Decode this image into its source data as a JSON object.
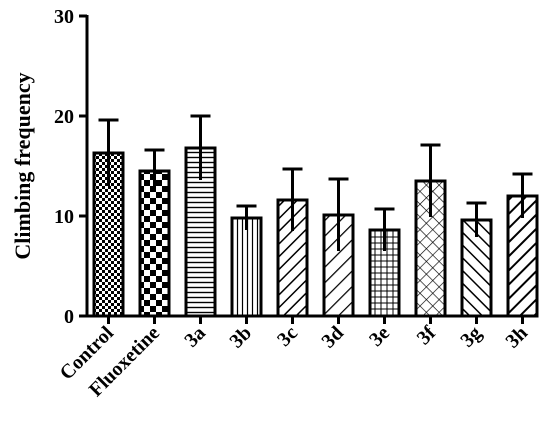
{
  "chart_data": {
    "type": "bar",
    "title": "",
    "xlabel": "",
    "ylabel": "Climbing frequency",
    "ylim": [
      0,
      30
    ],
    "yticks": [
      "0",
      "10",
      "20",
      "30"
    ],
    "grid": false,
    "categories": [
      "Control",
      "Fluoxetine",
      "3a",
      "3b",
      "3c",
      "3d",
      "3e",
      "3f",
      "3g",
      "3h"
    ],
    "values": [
      16.3,
      14.5,
      16.8,
      9.8,
      11.6,
      10.1,
      8.6,
      13.5,
      9.6,
      12.0
    ],
    "errors": [
      3.3,
      2.1,
      3.2,
      1.2,
      3.1,
      3.6,
      2.1,
      3.6,
      1.7,
      2.2
    ],
    "patterns": [
      "checker-small",
      "checker-large",
      "horizontal-lines",
      "vertical-lines",
      "diagonal-up",
      "diagonal-up-wide",
      "grid",
      "crosshatch-diagonal",
      "diagonal-down",
      "diagonal-up-bold"
    ]
  }
}
